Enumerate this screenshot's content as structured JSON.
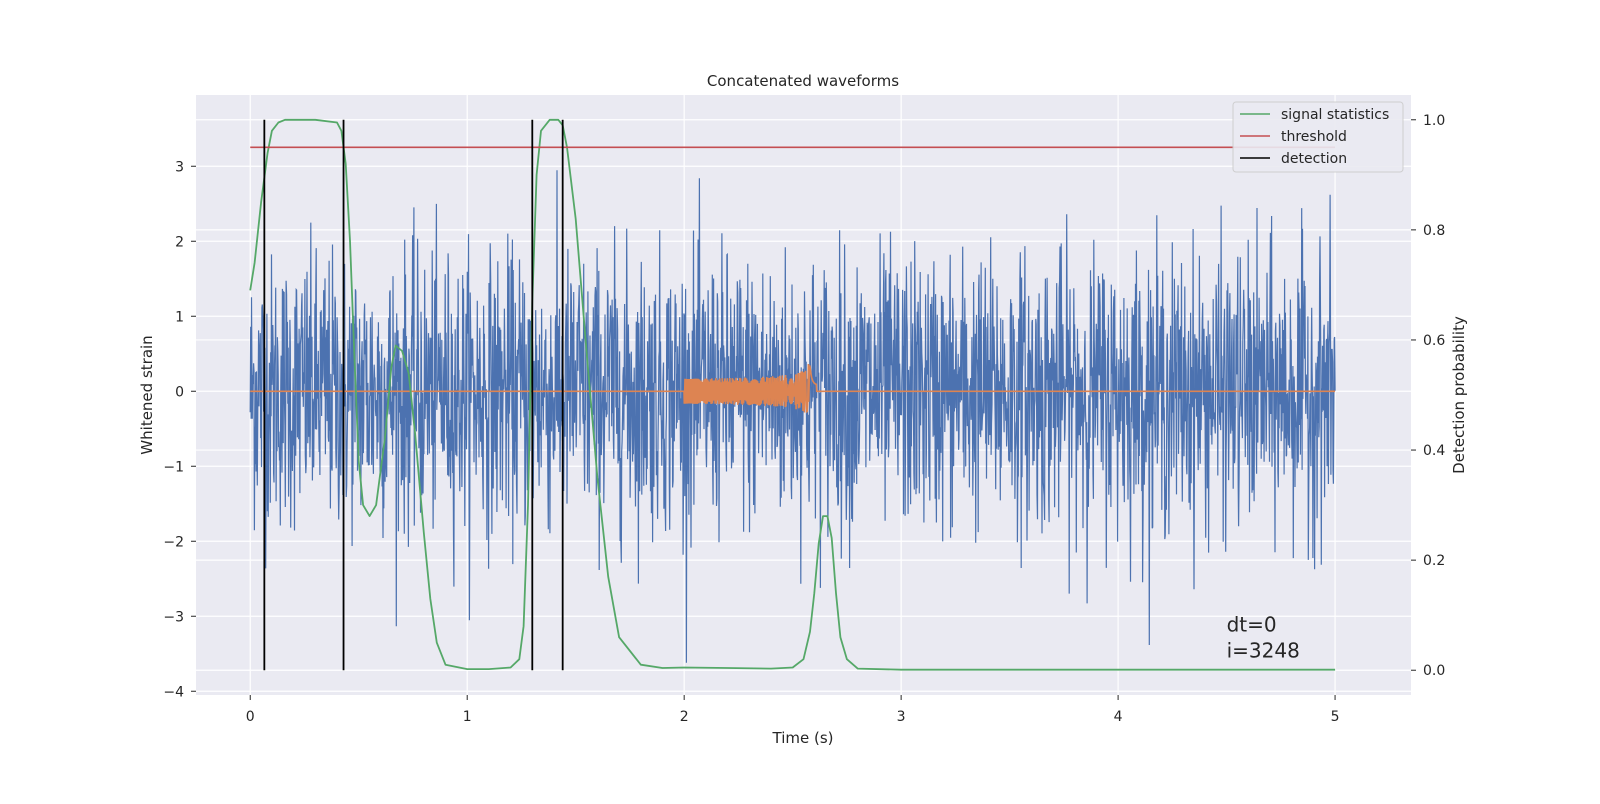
{
  "chart_data": {
    "type": "line",
    "title": "Concatenated waveforms",
    "xlabel": "Time (s)",
    "ylabel": "Whitened strain",
    "y2label": "Detection probability",
    "xlim": [
      -0.25,
      5.35
    ],
    "ylim": [
      -4.05,
      3.95
    ],
    "y2lim": [
      -0.045,
      1.045
    ],
    "xticks": [
      0,
      1,
      2,
      3,
      4,
      5
    ],
    "xtick_labels": [
      "0",
      "1",
      "2",
      "3",
      "4",
      "5"
    ],
    "yticks": [
      -4,
      -3,
      -2,
      -1,
      0,
      1,
      2,
      3
    ],
    "ytick_labels": [
      "−4",
      "−3",
      "−2",
      "−1",
      "0",
      "1",
      "2",
      "3"
    ],
    "y2ticks": [
      0.0,
      0.2,
      0.4,
      0.6,
      0.8,
      1.0
    ],
    "y2tick_labels": [
      "0.0",
      "0.2",
      "0.4",
      "0.6",
      "0.8",
      "1.0"
    ],
    "grid": true,
    "legend_position": "top-right",
    "series": [
      {
        "name": "",
        "axis": "left",
        "color": "#4c72b0",
        "kind": "noise",
        "x_range": [
          0,
          5
        ],
        "approx_std": 0.9,
        "approx_range": [
          -3.7,
          3.6
        ]
      },
      {
        "name": "",
        "axis": "left",
        "color": "#dd8452",
        "kind": "chirp",
        "baseline": 0,
        "burst_x_range": [
          2.0,
          2.58
        ],
        "burst_peak_amplitude": 0.48
      },
      {
        "name": "signal statistics",
        "axis": "right",
        "color": "#55a868",
        "x": [
          0,
          0.02,
          0.05,
          0.08,
          0.1,
          0.13,
          0.16,
          0.2,
          0.3,
          0.4,
          0.42,
          0.44,
          0.46,
          0.48,
          0.5,
          0.52,
          0.55,
          0.58,
          0.62,
          0.65,
          0.67,
          0.7,
          0.73,
          0.76,
          0.8,
          0.83,
          0.86,
          0.9,
          1.0,
          1.1,
          1.2,
          1.24,
          1.26,
          1.28,
          1.3,
          1.32,
          1.34,
          1.38,
          1.42,
          1.44,
          1.46,
          1.5,
          1.55,
          1.6,
          1.65,
          1.7,
          1.8,
          1.9,
          2.0,
          2.2,
          2.4,
          2.5,
          2.55,
          2.58,
          2.6,
          2.62,
          2.64,
          2.66,
          2.68,
          2.7,
          2.72,
          2.75,
          2.8,
          3.0,
          4.0,
          5.0
        ],
        "values": [
          0.69,
          0.74,
          0.85,
          0.94,
          0.98,
          0.995,
          1.0,
          1.0,
          1.0,
          0.995,
          0.98,
          0.92,
          0.78,
          0.57,
          0.38,
          0.3,
          0.28,
          0.3,
          0.42,
          0.55,
          0.59,
          0.58,
          0.54,
          0.43,
          0.25,
          0.13,
          0.05,
          0.01,
          0.002,
          0.002,
          0.005,
          0.02,
          0.08,
          0.3,
          0.67,
          0.9,
          0.98,
          1.0,
          1.0,
          0.99,
          0.95,
          0.82,
          0.58,
          0.35,
          0.17,
          0.06,
          0.01,
          0.004,
          0.005,
          0.004,
          0.003,
          0.005,
          0.02,
          0.07,
          0.14,
          0.23,
          0.28,
          0.28,
          0.24,
          0.14,
          0.06,
          0.02,
          0.003,
          0.001,
          0.001,
          0.001
        ]
      },
      {
        "name": "threshold",
        "axis": "right",
        "color": "#c44e52",
        "x": [
          0,
          5
        ],
        "values": [
          0.95,
          0.95
        ]
      },
      {
        "name": "detection",
        "axis": "right",
        "color": "#000000",
        "kind": "vertical-lines",
        "x": [
          0.065,
          0.43,
          1.3,
          1.44
        ],
        "y_range": [
          0,
          1
        ]
      }
    ],
    "annotations": [
      {
        "text": "dt=0",
        "x": 4.5,
        "y": -3.2
      },
      {
        "text": "i=3248",
        "x": 4.5,
        "y": -3.55
      }
    ]
  }
}
